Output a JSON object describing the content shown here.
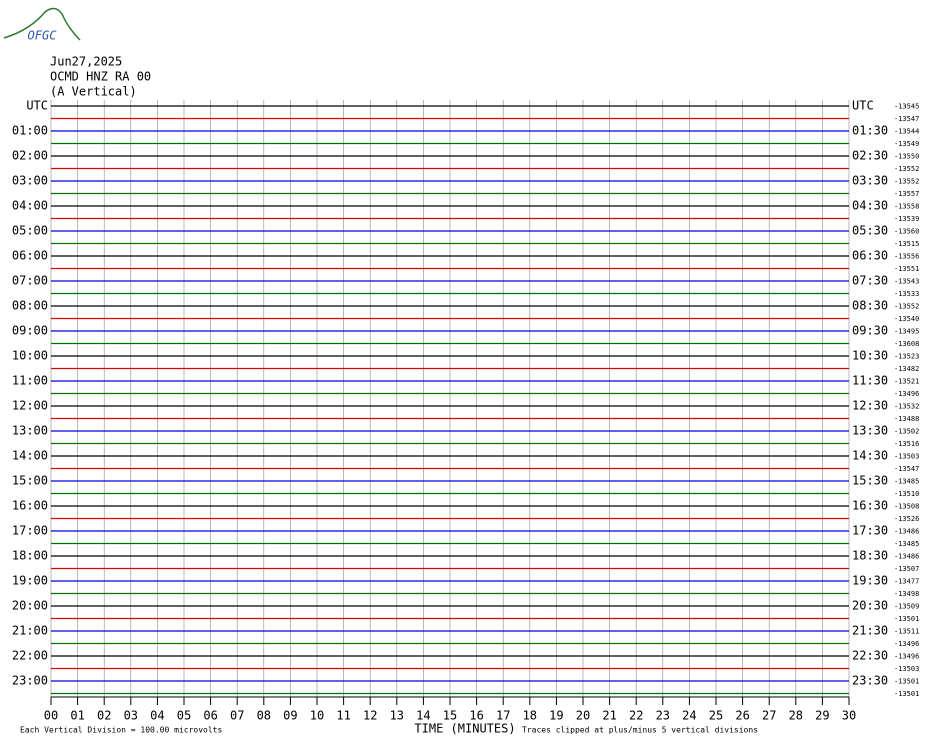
{
  "header": {
    "logo": "OFGC",
    "date": "Jun27,2025",
    "station": "OCMD HNZ RA 00",
    "component": "(A Vertical)"
  },
  "chart_data": {
    "type": "helicorder",
    "xlabel": "TIME (MINUTES)",
    "xlim": [
      0,
      30
    ],
    "xticks": [
      {
        "value": 0,
        "label": "00"
      },
      {
        "value": 1,
        "label": "01"
      },
      {
        "value": 2,
        "label": "02"
      },
      {
        "value": 3,
        "label": "03"
      },
      {
        "value": 4,
        "label": "04"
      },
      {
        "value": 5,
        "label": "05"
      },
      {
        "value": 6,
        "label": "06"
      },
      {
        "value": 7,
        "label": "07"
      },
      {
        "value": 8,
        "label": "08"
      },
      {
        "value": 9,
        "label": "09"
      },
      10,
      11,
      12,
      13,
      14,
      15,
      16,
      17,
      18,
      19,
      20,
      21,
      22,
      23,
      24,
      25,
      26,
      27,
      28,
      29,
      30
    ],
    "grid": true,
    "trace_colors": [
      "#000000",
      "#e00000",
      "#0000e0",
      "#007000"
    ],
    "left_labels": [
      "UTC",
      "01:00",
      "02:00",
      "03:00",
      "04:00",
      "05:00",
      "06:00",
      "07:00",
      "08:00",
      "09:00",
      "10:00",
      "11:00",
      "12:00",
      "13:00",
      "14:00",
      "15:00",
      "16:00",
      "17:00",
      "18:00",
      "19:00",
      "20:00",
      "21:00",
      "22:00",
      "23:00"
    ],
    "right_labels": [
      "UTC",
      "01:30",
      "02:30",
      "03:30",
      "04:30",
      "05:30",
      "06:30",
      "07:30",
      "08:30",
      "09:30",
      "10:30",
      "11:30",
      "12:30",
      "13:30",
      "14:30",
      "15:30",
      "16:30",
      "17:30",
      "18:30",
      "19:30",
      "20:30",
      "21:30",
      "22:30",
      "23:30"
    ],
    "offsets": [
      -13545,
      -13547,
      -13544,
      -13549,
      -13550,
      -13552,
      -13552,
      -13557,
      -13558,
      -13539,
      -13560,
      -13515,
      -13556,
      -13551,
      -13543,
      -13533,
      -13552,
      -13540,
      -13495,
      -13608,
      -13523,
      -13482,
      -13521,
      -13496,
      -13532,
      -13488,
      -13502,
      -13516,
      -13503,
      -13547,
      -13485,
      -13510,
      -13508,
      -13526,
      -13486,
      -13485,
      -13486,
      -13507,
      -13477,
      -13498,
      -13509,
      -13501,
      -13511,
      -13496,
      -13496,
      -13503,
      -13501,
      -13501
    ]
  },
  "footer": {
    "scale_note": "Each Vertical Division =  100.00 microvolts",
    "clip_note": "Traces clipped at plus/minus 5 vertical divisions"
  }
}
